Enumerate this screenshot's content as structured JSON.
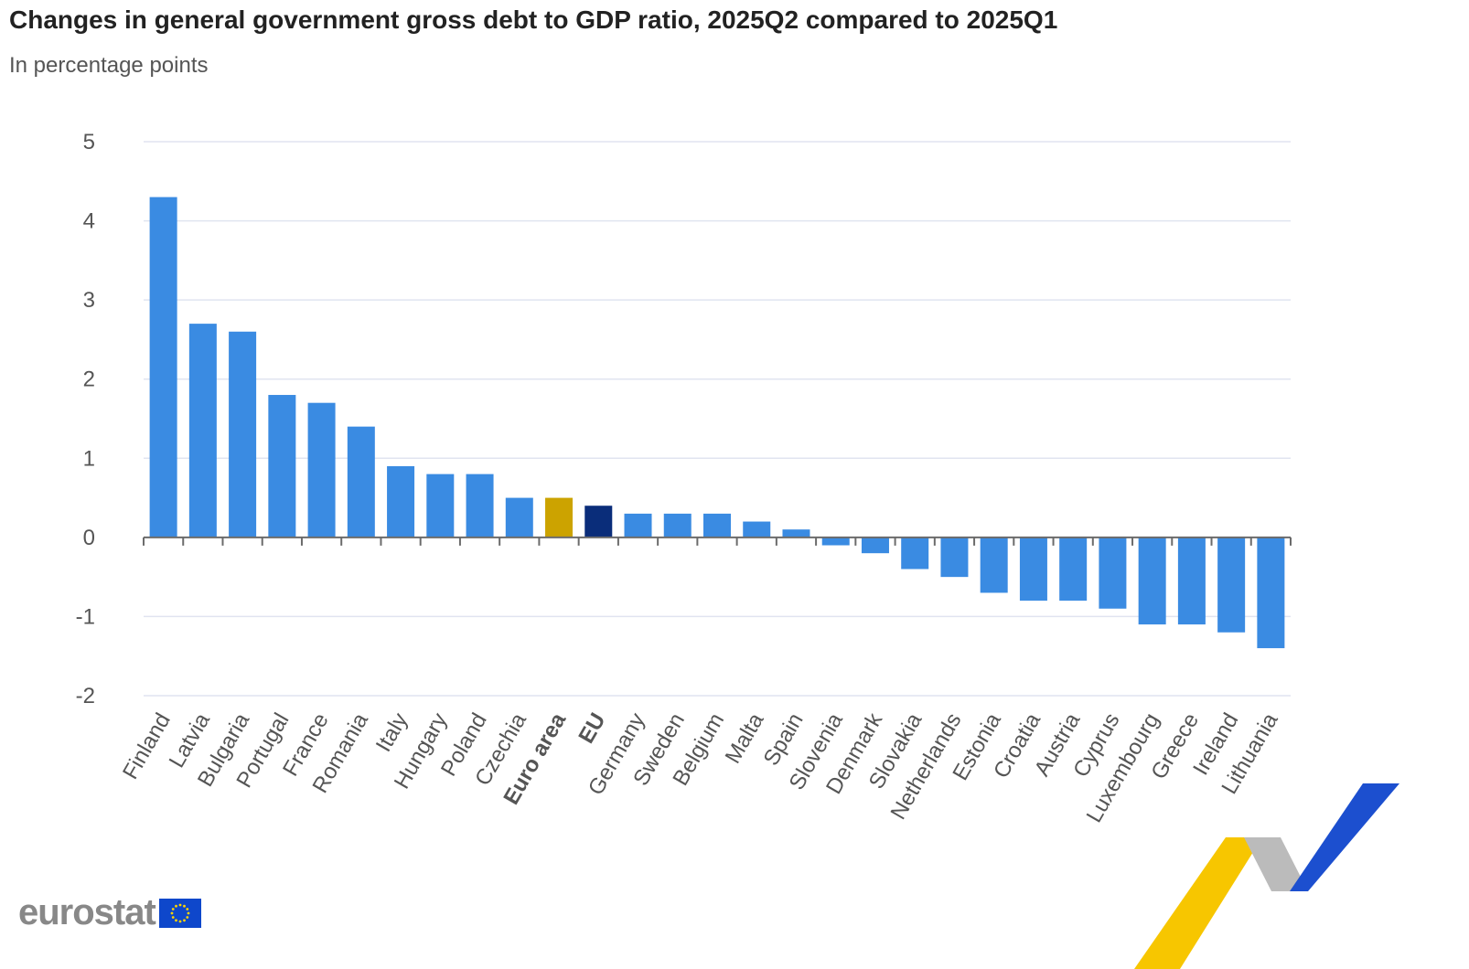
{
  "title": "Changes in general government gross debt to GDP ratio, 2025Q2 compared to 2025Q1",
  "subtitle": "In percentage points",
  "logo": "eurostat",
  "chart_data": {
    "type": "bar",
    "title": "Changes in general government gross debt to GDP ratio, 2025Q2 compared to 2025Q1",
    "subtitle": "In percentage points",
    "xlabel": "",
    "ylabel": "",
    "ylim": [
      -2,
      5
    ],
    "yticks": [
      -2,
      -1,
      0,
      1,
      2,
      3,
      4,
      5
    ],
    "grid": true,
    "categories": [
      "Finland",
      "Latvia",
      "Bulgaria",
      "Portugal",
      "France",
      "Romania",
      "Italy",
      "Hungary",
      "Poland",
      "Czechia",
      "Euro area",
      "EU",
      "Germany",
      "Sweden",
      "Belgium",
      "Malta",
      "Spain",
      "Slovenia",
      "Denmark",
      "Slovakia",
      "Netherlands",
      "Estonia",
      "Croatia",
      "Austria",
      "Cyprus",
      "Luxembourg",
      "Greece",
      "Ireland",
      "Lithuania"
    ],
    "values": [
      4.3,
      2.7,
      2.6,
      1.8,
      1.7,
      1.4,
      0.9,
      0.8,
      0.8,
      0.5,
      0.5,
      0.4,
      0.3,
      0.3,
      0.3,
      0.2,
      0.1,
      -0.1,
      -0.2,
      -0.4,
      -0.5,
      -0.7,
      -0.8,
      -0.8,
      -0.9,
      -1.1,
      -1.1,
      -1.2,
      -1.4
    ],
    "bold_categories": [
      "Euro area",
      "EU"
    ],
    "colors": {
      "default": "#3a8be2",
      "Euro area": "#cca300",
      "EU": "#0a2d7a",
      "grid": "#e0e4f0",
      "axis": "#6b6b6b"
    }
  }
}
